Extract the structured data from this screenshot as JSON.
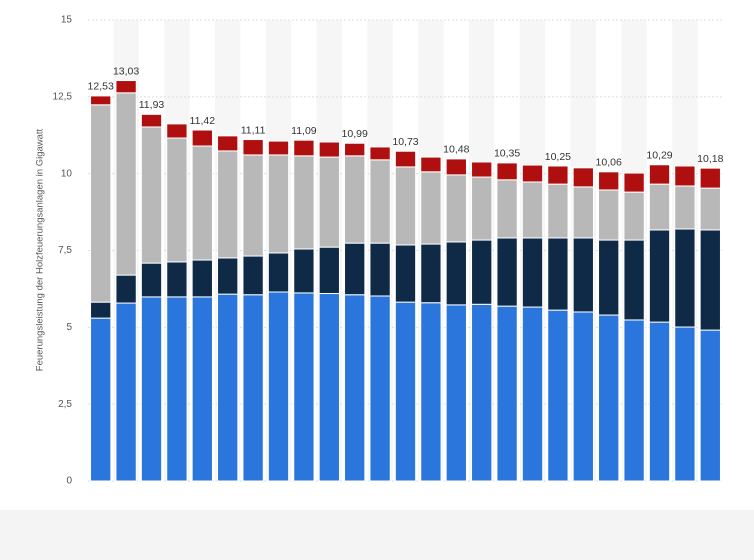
{
  "chart_data": {
    "type": "stacked_bar",
    "y_label": "Feuerungsleistung der Holzfeuerungsanlagen in Gigawatt",
    "categories": [
      null,
      null,
      null,
      null,
      null,
      null,
      null,
      null,
      null,
      null,
      null,
      null,
      null,
      null,
      null,
      null,
      null,
      null,
      null,
      null,
      null,
      null,
      null,
      null,
      null
    ],
    "series": [
      {
        "color": "#2a76dd",
        "values": [
          5.3,
          5.79,
          5.99,
          5.99,
          5.99,
          6.08,
          6.06,
          6.15,
          6.12,
          6.1,
          6.06,
          6.02,
          5.82,
          5.8,
          5.73,
          5.75,
          5.69,
          5.66,
          5.56,
          5.5,
          5.4,
          5.24,
          5.17,
          5.01,
          4.91
        ]
      },
      {
        "color": "#0e2a47",
        "values": [
          0.52,
          0.91,
          1.1,
          1.14,
          1.2,
          1.18,
          1.26,
          1.27,
          1.43,
          1.51,
          1.68,
          1.72,
          1.86,
          1.91,
          2.05,
          2.09,
          2.22,
          2.25,
          2.35,
          2.41,
          2.44,
          2.6,
          3.0,
          3.19,
          3.26
        ]
      },
      {
        "color": "#b8b8b8",
        "values": [
          6.42,
          5.93,
          4.43,
          4.03,
          3.71,
          3.48,
          3.29,
          3.19,
          3.03,
          2.93,
          2.84,
          2.71,
          2.54,
          2.35,
          2.18,
          2.05,
          1.89,
          1.82,
          1.75,
          1.66,
          1.63,
          1.56,
          1.49,
          1.4,
          1.36
        ]
      },
      {
        "color": "#b00f0f",
        "values": [
          0.29,
          0.4,
          0.41,
          0.46,
          0.52,
          0.49,
          0.5,
          0.45,
          0.51,
          0.49,
          0.41,
          0.42,
          0.51,
          0.48,
          0.52,
          0.49,
          0.55,
          0.55,
          0.59,
          0.62,
          0.59,
          0.62,
          0.63,
          0.65,
          0.65
        ]
      }
    ],
    "totals": [
      12.53,
      13.03,
      11.93,
      null,
      11.42,
      null,
      11.11,
      null,
      11.09,
      null,
      10.99,
      null,
      10.73,
      null,
      10.48,
      null,
      10.35,
      null,
      10.25,
      null,
      10.06,
      null,
      10.29,
      null,
      10.18
    ],
    "total_labels": [
      "12,53",
      "13,03",
      "11,93",
      null,
      "11,42",
      null,
      "11,11",
      null,
      "11,09",
      null,
      "10,99",
      null,
      "10,73",
      null,
      "10,48",
      null,
      "10,35",
      null,
      "10,25",
      null,
      "10,06",
      null,
      "10,29",
      null,
      "10,18"
    ],
    "ylim": [
      0,
      15
    ],
    "yticks": [
      0,
      {
        "value": 2.5,
        "label": "2,5"
      },
      5,
      {
        "value": 7.5,
        "label": "7,5"
      },
      10,
      {
        "value": 12.5,
        "label": "12,5"
      },
      15
    ],
    "grid": true
  }
}
